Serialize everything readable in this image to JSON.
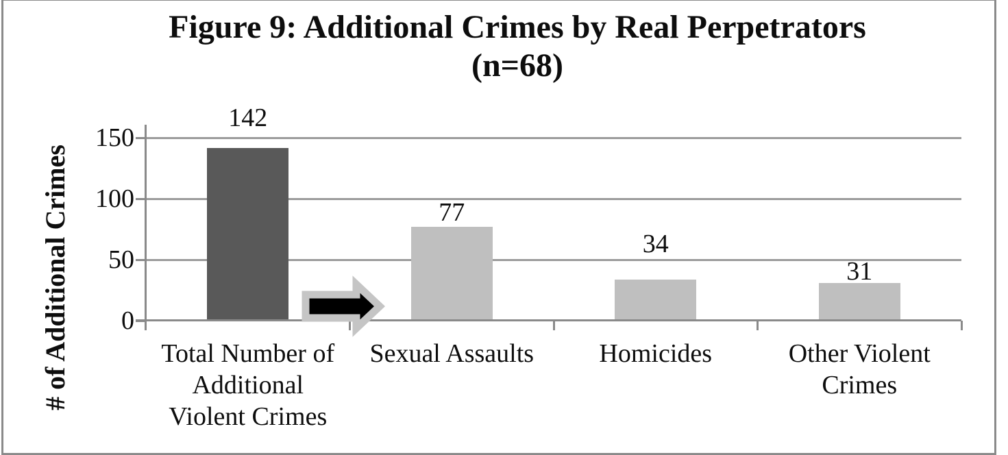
{
  "title": {
    "line1": "Figure 9: Additional Crimes by Real Perpetrators",
    "line2": "(n=68)"
  },
  "chart_data": {
    "type": "bar",
    "title": "Figure 9: Additional Crimes by Real Perpetrators (n=68)",
    "categories": [
      "Total Number of Additional Violent Crimes",
      "Sexual Assaults",
      "Homicides",
      "Other Violent Crimes"
    ],
    "category_label_lines": [
      [
        "Total Number of",
        "Additional",
        "Violent Crimes"
      ],
      [
        "Sexual Assaults"
      ],
      [
        "Homicides"
      ],
      [
        "Other Violent",
        "Crimes"
      ]
    ],
    "values": [
      142,
      77,
      34,
      31
    ],
    "data_labels": [
      "142",
      "77",
      "34",
      "31"
    ],
    "xlabel": "",
    "ylabel": "# of Additional Crimes",
    "ylim": [
      0,
      160
    ],
    "yticks": [
      0,
      50,
      100,
      150
    ],
    "ytick_labels": [
      "0",
      "50",
      "100",
      "150"
    ],
    "grid": true,
    "legend": false,
    "bar_colors": [
      "#595959",
      "#bfbfbf",
      "#bfbfbf",
      "#bfbfbf"
    ],
    "annotation": {
      "type": "right-arrow",
      "fill": "#000000",
      "outline": "#c5c5c5",
      "position": "at baseline between first and second bar"
    }
  },
  "colors": {
    "background": "#ffffff",
    "border": "#8a8a8a",
    "axis": "#8a8a8a",
    "gridline": "#9b9b9b",
    "text": "#0d0d0d",
    "dark_bar": "#595959",
    "light_bar": "#bfbfbf"
  }
}
